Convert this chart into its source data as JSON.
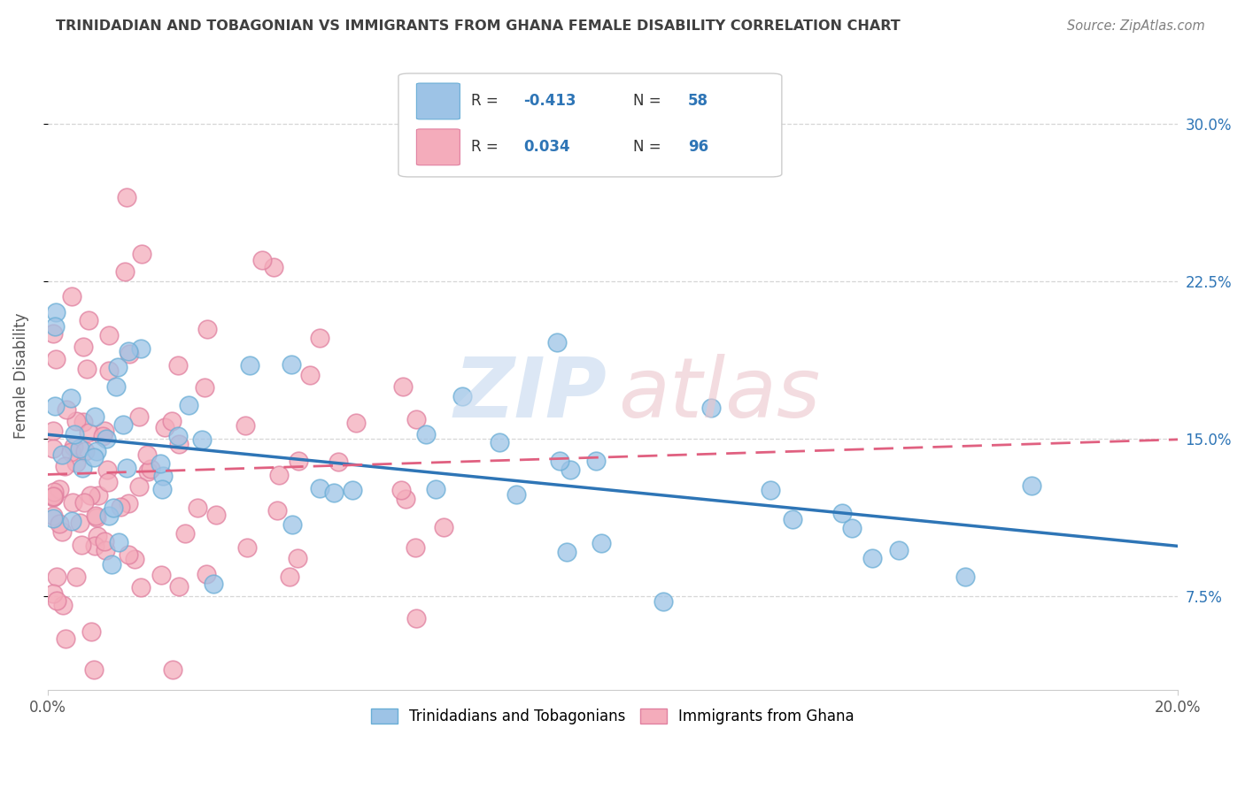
{
  "title": "TRINIDADIAN AND TOBAGONIAN VS IMMIGRANTS FROM GHANA FEMALE DISABILITY CORRELATION CHART",
  "source": "Source: ZipAtlas.com",
  "ylabel": "Female Disability",
  "y_ticks": [
    0.075,
    0.15,
    0.225,
    0.3
  ],
  "y_tick_labels": [
    "7.5%",
    "15.0%",
    "22.5%",
    "30.0%"
  ],
  "x_min": 0.0,
  "x_max": 0.2,
  "y_min": 0.03,
  "y_max": 0.33,
  "blue_R": -0.413,
  "blue_N": 58,
  "pink_R": 0.034,
  "pink_N": 96,
  "blue_color": "#9DC3E6",
  "pink_color": "#F4ACBB",
  "blue_line_color": "#2E75B6",
  "pink_line_color": "#E06080",
  "blue_edge_color": "#6AAED6",
  "pink_edge_color": "#E080A0",
  "legend_label_blue": "Trinidadians and Tobagonians",
  "legend_label_pink": "Immigrants from Ghana",
  "legend_blue_box": "#9DC3E6",
  "legend_pink_box": "#F4ACBB",
  "stat_color": "#2E75B6",
  "watermark_zip_color": "#C5D8EF",
  "watermark_atlas_color": "#EBC5CC",
  "background_color": "#FFFFFF",
  "grid_color": "#CCCCCC",
  "title_color": "#404040",
  "source_color": "#808080",
  "tick_label_color": "#2E75B6"
}
